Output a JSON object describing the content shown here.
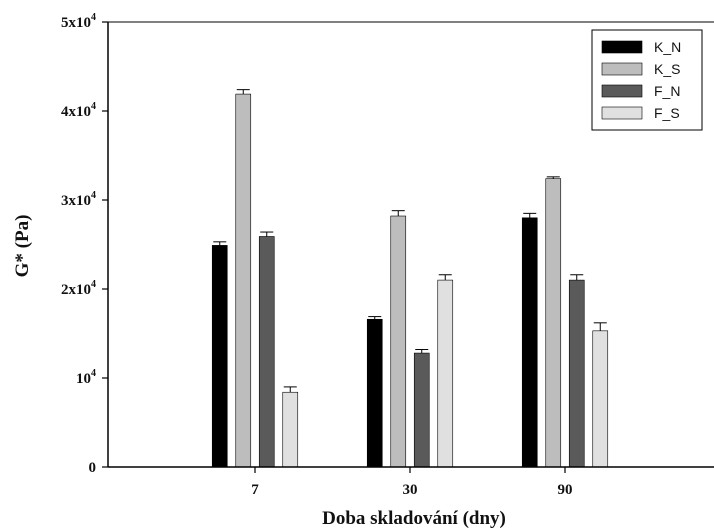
{
  "chart_data": {
    "type": "bar",
    "xlabel": "Doba skladování (dny)",
    "ylabel": "G* (Pa)",
    "categories": [
      "7",
      "30",
      "90"
    ],
    "ylim": [
      0,
      50000
    ],
    "yticks": [
      {
        "value": 0,
        "base": "0",
        "exp": ""
      },
      {
        "value": 10000,
        "base": "10",
        "exp": "4"
      },
      {
        "value": 20000,
        "base": "2x10",
        "exp": "4"
      },
      {
        "value": 30000,
        "base": "3x10",
        "exp": "4"
      },
      {
        "value": 40000,
        "base": "4x10",
        "exp": "4"
      },
      {
        "value": 50000,
        "base": "5x10",
        "exp": "4"
      }
    ],
    "series": [
      {
        "name": "K_N",
        "color": "#000000",
        "values": [
          24900,
          16600,
          28000
        ],
        "errors": [
          400,
          300,
          500
        ]
      },
      {
        "name": "K_S",
        "color": "#bdbdbd",
        "values": [
          41900,
          28200,
          32400
        ],
        "errors": [
          500,
          600,
          200
        ]
      },
      {
        "name": "F_N",
        "color": "#5a5a5a",
        "values": [
          25900,
          12800,
          21000
        ],
        "errors": [
          500,
          400,
          600
        ]
      },
      {
        "name": "F_S",
        "color": "#e0e0e0",
        "values": [
          8400,
          21000,
          15300
        ],
        "errors": [
          600,
          600,
          900
        ]
      }
    ],
    "legend": "top-right",
    "grid": false
  }
}
